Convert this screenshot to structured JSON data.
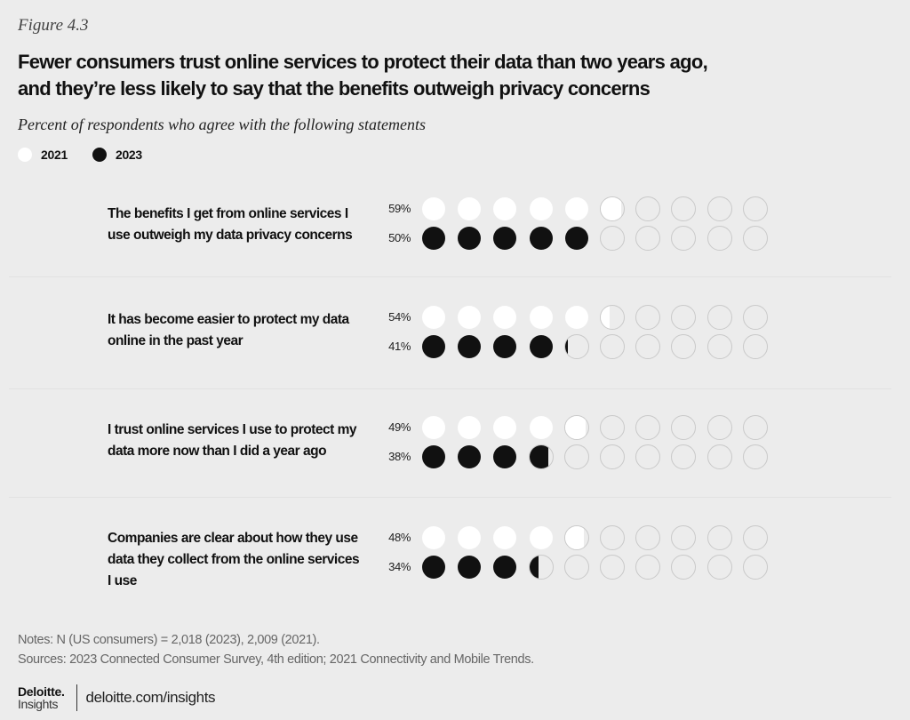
{
  "figure_label": "Figure 4.3",
  "title_lines": [
    "Fewer consumers trust online services to protect their data than two years ago,",
    "and they’re less likely to say that the benefits outweigh privacy concerns"
  ],
  "subtitle": "Percent of respondents who agree with the following statements",
  "legend": [
    {
      "label": "2021",
      "color": "#ffffff"
    },
    {
      "label": "2023",
      "color": "#111111"
    }
  ],
  "notes": "Notes: N (US consumers) = 2,018 (2023), 2,009 (2021).",
  "sources": "Sources: 2023 Connected Consumer Survey, 4th edition; 2021 Connectivity and Mobile Trends.",
  "footer": {
    "brand_name": "Deloitte.",
    "brand_sub": "Insights",
    "url": "deloitte.com/insights"
  },
  "colors": {
    "background": "#ececec",
    "series_2021": "#ffffff",
    "series_2023": "#111111",
    "empty_outline": "#c9c9c9"
  },
  "chart_data": {
    "type": "bar",
    "style": "dot-matrix (10 dots per row, each dot = 10%)",
    "title": "Fewer consumers trust online services to protect their data than two years ago, and they’re less likely to say that the benefits outweigh privacy concerns",
    "subtitle": "Percent of respondents who agree with the following statements",
    "xlabel": "",
    "ylabel": "",
    "ylim": [
      0,
      100
    ],
    "legend_position": "top-left",
    "categories": [
      "The benefits I get from online services I use outweigh my data privacy concerns",
      "It has become easier to protect my data online in the past year",
      "I trust online services I use to protect my data more now than I did a year ago",
      "Companies are clear about how they use data they collect from the online services I use"
    ],
    "series": [
      {
        "name": "2021",
        "values": [
          59,
          54,
          49,
          48
        ],
        "labels": [
          "59%",
          "54%",
          "49%",
          "48%"
        ]
      },
      {
        "name": "2023",
        "values": [
          50,
          41,
          38,
          34
        ],
        "labels": [
          "50%",
          "41%",
          "38%",
          "34%"
        ]
      }
    ]
  }
}
